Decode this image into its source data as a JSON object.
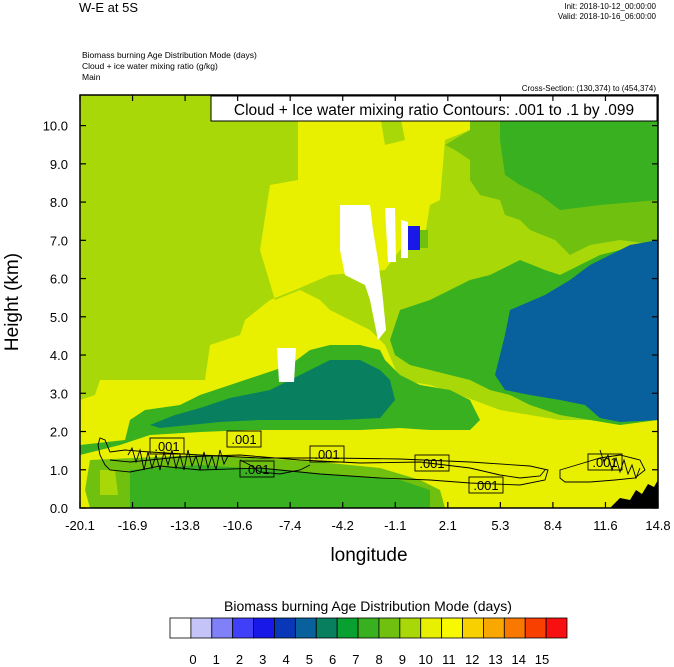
{
  "header": {
    "title": "W-E at 5S",
    "init": "Init: 2018-10-12_00:00:00",
    "valid": "Valid: 2018-10-16_06:00:00",
    "field1": "Biomass burning Age Distribution Mode    (days)",
    "field2": "Cloud + ice water mixing ratio    (g/kg)",
    "field3": "Main",
    "cross_section": "Cross-Section: (130,374) to (454,374)"
  },
  "chart_data": {
    "type": "heatmap",
    "contour_title": "Cloud + Ice water mixing ratio Contours: .001 to .1 by .099",
    "xlabel": "longitude",
    "ylabel": "Height (km)",
    "x_ticks": [
      "-20.1",
      "-16.9",
      "-13.8",
      "-10.6",
      "-7.4",
      "-4.2",
      "-1.1",
      "2.1",
      "5.3",
      "8.4",
      "11.6",
      "14.8"
    ],
    "y_ticks": [
      "0.0",
      "1.0",
      "2.0",
      "3.0",
      "4.0",
      "5.0",
      "6.0",
      "7.0",
      "8.0",
      "9.0",
      "10.0"
    ],
    "xlim": [
      -20.1,
      14.8
    ],
    "ylim": [
      0.0,
      10.8
    ],
    "contour_labels": [
      ".001",
      ".001",
      ".001",
      ".001",
      ".001",
      ".001",
      ".001"
    ],
    "colorbar": {
      "title": "Biomass burning Age Distribution Mode  (days)",
      "labels": [
        "0",
        "1",
        "2",
        "3",
        "4",
        "5",
        "6",
        "7",
        "8",
        "9",
        "10",
        "11",
        "12",
        "13",
        "14",
        "15"
      ],
      "colors": [
        "#ffffff",
        "#c4c4f8",
        "#8080f8",
        "#4040f8",
        "#1818e8",
        "#0838b8",
        "#08609c",
        "#088060",
        "#08a030",
        "#38b020",
        "#70c010",
        "#a8d808",
        "#e8f000",
        "#f8f800",
        "#f8d000",
        "#f8a800",
        "#f87800",
        "#f84000",
        "#f81010"
      ]
    }
  }
}
